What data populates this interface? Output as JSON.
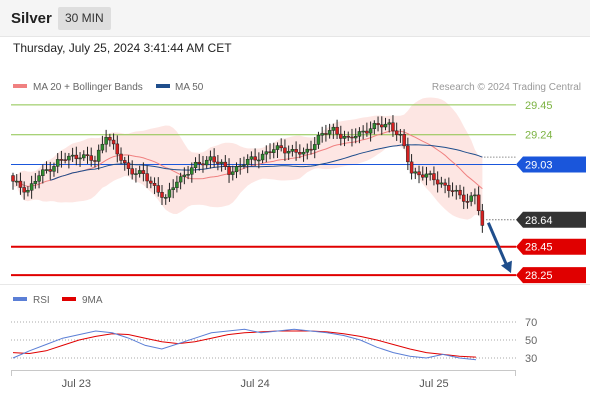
{
  "header": {
    "instrument": "Silver",
    "timeframe": "30 MIN",
    "datetime": "Thursday, July 25, 2024 3:41:44 AM CET"
  },
  "chart_data": {
    "type": "candlestick",
    "legend": [
      {
        "label": "MA 20 + Bollinger Bands",
        "color": "#f08080"
      },
      {
        "label": "MA 50",
        "color": "#1f4e8c"
      }
    ],
    "copyright": "Research © 2024 Trading Central",
    "y_range": [
      28.18,
      29.52
    ],
    "levels": [
      {
        "value": 29.45,
        "label": "29.45",
        "kind": "resistance",
        "color": "#8bc34a"
      },
      {
        "value": 29.24,
        "label": "29.24",
        "kind": "resistance",
        "color": "#8bc34a"
      },
      {
        "value": 29.03,
        "label": "29.03",
        "kind": "pivot",
        "color": "#1a56db"
      },
      {
        "value": 28.64,
        "label": "28.64",
        "kind": "last",
        "color": "#333333"
      },
      {
        "value": 28.45,
        "label": "28.45",
        "kind": "support",
        "color": "#e00000"
      },
      {
        "value": 28.25,
        "label": "28.25",
        "kind": "support",
        "color": "#e00000"
      }
    ],
    "close_anchors": [
      [
        0,
        28.9
      ],
      [
        4,
        28.85
      ],
      [
        7,
        28.95
      ],
      [
        12,
        29.05
      ],
      [
        18,
        29.1
      ],
      [
        22,
        29.05
      ],
      [
        25,
        29.25
      ],
      [
        28,
        29.1
      ],
      [
        31,
        29.0
      ],
      [
        35,
        28.95
      ],
      [
        39,
        28.85
      ],
      [
        41,
        28.78
      ],
      [
        44,
        28.92
      ],
      [
        48,
        29.0
      ],
      [
        53,
        29.08
      ],
      [
        58,
        28.98
      ],
      [
        63,
        29.05
      ],
      [
        67,
        29.1
      ],
      [
        72,
        29.15
      ],
      [
        75,
        29.12
      ],
      [
        78,
        29.1
      ],
      [
        82,
        29.22
      ],
      [
        86,
        29.28
      ],
      [
        90,
        29.2
      ],
      [
        94,
        29.27
      ],
      [
        98,
        29.3
      ],
      [
        101,
        29.32
      ],
      [
        104,
        29.22
      ],
      [
        107,
        28.98
      ],
      [
        111,
        28.95
      ],
      [
        115,
        28.9
      ],
      [
        119,
        28.82
      ],
      [
        122,
        28.78
      ],
      [
        124,
        28.82
      ],
      [
        126,
        28.6
      ]
    ],
    "rsi": {
      "name": "RSI",
      "color": "#5b7fd6",
      "values": [
        30,
        38,
        45,
        52,
        56,
        60,
        58,
        52,
        44,
        40,
        46,
        52,
        58,
        60,
        62,
        58,
        60,
        62,
        60,
        58,
        55,
        50,
        42,
        36,
        32,
        30,
        34,
        30,
        28
      ],
      "ma_name": "9MA",
      "ma_color": "#e00000",
      "ma_values": [
        36,
        35,
        38,
        44,
        50,
        54,
        57,
        56,
        52,
        48,
        46,
        48,
        52,
        56,
        58,
        59,
        60,
        60,
        60,
        59,
        57,
        54,
        50,
        45,
        40,
        36,
        34,
        32,
        31
      ],
      "levels": [
        70,
        50,
        30
      ],
      "y_range": [
        20,
        80
      ]
    },
    "x_labels": [
      {
        "label": "Jul 23",
        "index": 17
      },
      {
        "label": "Jul 24",
        "index": 65
      },
      {
        "label": "Jul 25",
        "index": 113
      }
    ]
  }
}
